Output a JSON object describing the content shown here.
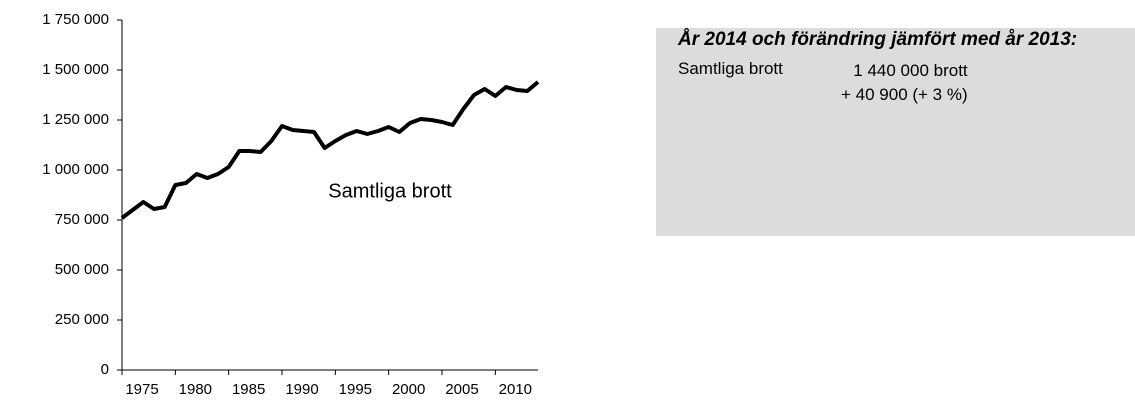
{
  "chart_data": {
    "type": "line",
    "x": [
      1975,
      1976,
      1977,
      1978,
      1979,
      1980,
      1981,
      1982,
      1983,
      1984,
      1985,
      1986,
      1987,
      1988,
      1989,
      1990,
      1991,
      1992,
      1993,
      1994,
      1995,
      1996,
      1997,
      1998,
      1999,
      2000,
      2001,
      2002,
      2003,
      2004,
      2005,
      2006,
      2007,
      2008,
      2009,
      2010,
      2011,
      2012,
      2013,
      2014
    ],
    "series": [
      {
        "name": "Samtliga brott",
        "color": "#000000",
        "values": [
          760000,
          800000,
          840000,
          805000,
          815000,
          925000,
          935000,
          980000,
          960000,
          980000,
          1015000,
          1095000,
          1095000,
          1090000,
          1145000,
          1220000,
          1200000,
          1195000,
          1190000,
          1110000,
          1145000,
          1175000,
          1195000,
          1180000,
          1195000,
          1215000,
          1190000,
          1235000,
          1255000,
          1250000,
          1240000,
          1225000,
          1305000,
          1375000,
          1405000,
          1370000,
          1415000,
          1400000,
          1395000,
          1440000
        ]
      }
    ],
    "xlim": [
      1975,
      2014
    ],
    "xticks": [
      1975,
      1980,
      1985,
      1990,
      1995,
      2000,
      2005,
      2010
    ],
    "ylim": [
      0,
      1750000
    ],
    "yticks": [
      0,
      {
        "value": 250000,
        "label": "250 000"
      },
      {
        "value": 500000,
        "label": "500 000"
      },
      {
        "value": 750000,
        "label": "750 000"
      },
      {
        "value": 1000000,
        "label": "1 000 000"
      },
      {
        "value": 1250000,
        "label": "1 250 000"
      },
      {
        "value": 1500000,
        "label": "1 500 000"
      },
      {
        "value": 1750000,
        "label": "1 750 000"
      }
    ],
    "grid": false
  },
  "info_box": {
    "title": "År 2014 och förändring jämfört med år 2013:",
    "rows": [
      {
        "label": "Samtliga brott",
        "value": "1 440 000 brott",
        "change": "+ 40 900 (+ 3 %)"
      }
    ]
  }
}
